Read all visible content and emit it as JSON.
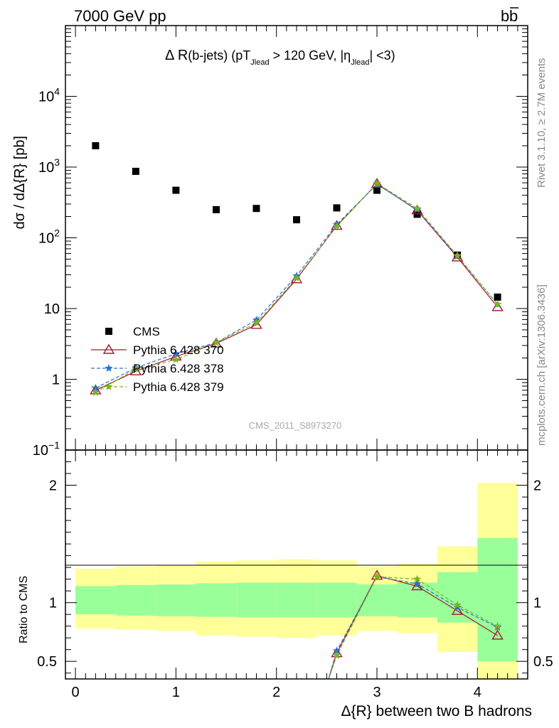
{
  "header": {
    "left": "7000 GeV pp",
    "right": "b",
    "right_bar": "b"
  },
  "side_labels": {
    "rivet": "Rivet 3.1.10, ≥ 2.7M events",
    "mcplots": "mcplots.cern.ch [arXiv:1306.3436]"
  },
  "watermark": "CMS_2011_S8973270",
  "chart_data": [
    {
      "type": "scatter",
      "panel": "main",
      "title": {
        "part1": "Δ R",
        "part2": "(b-jets) (pT",
        "sub1": "Jlead",
        "part3": " >  120 GeV, |η",
        "sub2": "Jlead",
        "part4": "| <3)"
      },
      "ylabel": "dσ / dΔ{R} [pb]",
      "yscale": "log",
      "xlim": [
        -0.1,
        4.5
      ],
      "ylim": [
        0.1,
        100000
      ],
      "y_ticks": [
        {
          "value": 0.1,
          "base": "10",
          "exp": "−1"
        },
        {
          "value": 1,
          "base": "1",
          "exp": ""
        },
        {
          "value": 10,
          "base": "10",
          "exp": ""
        },
        {
          "value": 100,
          "base": "10",
          "exp": "2"
        },
        {
          "value": 1000,
          "base": "10",
          "exp": "3"
        },
        {
          "value": 10000,
          "base": "10",
          "exp": "4"
        }
      ],
      "legend_position": "lower-left",
      "series": [
        {
          "name": "CMS",
          "marker": "square",
          "color": "#000000",
          "x": [
            0.2,
            0.6,
            1.0,
            1.4,
            1.8,
            2.2,
            2.6,
            3.0,
            3.4,
            3.8,
            4.2
          ],
          "y": [
            2000,
            870,
            470,
            250,
            260,
            180,
            265,
            470,
            215,
            57,
            14.5
          ]
        },
        {
          "name": "Pythia 6.428 370",
          "marker": "triangle-open",
          "color": "#a3172e",
          "dash": "solid",
          "x": [
            0.2,
            0.6,
            1.0,
            1.4,
            1.8,
            2.2,
            2.6,
            3.0,
            3.4,
            3.8,
            4.2
          ],
          "y": [
            0.7,
            1.3,
            2.1,
            3.2,
            5.9,
            26,
            148,
            580,
            245,
            53,
            10.5
          ]
        },
        {
          "name": "Pythia 6.428 378",
          "marker": "star",
          "color": "#2a70d0",
          "dash": "dashed",
          "x": [
            0.2,
            0.6,
            1.0,
            1.4,
            1.8,
            2.2,
            2.6,
            3.0,
            3.4,
            3.8,
            4.2
          ],
          "y": [
            0.75,
            1.45,
            2.3,
            3.3,
            6.9,
            29,
            155,
            570,
            250,
            55,
            11.5
          ]
        },
        {
          "name": "Pythia 6.428 379",
          "marker": "star",
          "color": "#7ab51d",
          "dash": "dashed",
          "x": [
            0.2,
            0.6,
            1.0,
            1.4,
            1.8,
            2.2,
            2.6,
            3.0,
            3.4,
            3.8,
            4.2
          ],
          "y": [
            0.65,
            1.4,
            1.9,
            3.3,
            6.3,
            27,
            145,
            590,
            260,
            56,
            11.5
          ]
        }
      ]
    },
    {
      "type": "line",
      "panel": "ratio",
      "ylabel": "Ratio to CMS",
      "xlabel": "Δ{R} between two B hadrons",
      "xlim": [
        -0.1,
        4.5
      ],
      "ylim": [
        0.35,
        2.3
      ],
      "x_ticks": [
        0,
        1,
        2,
        3,
        4
      ],
      "y_ticks": [
        0.5,
        1,
        2
      ],
      "bands": {
        "edges": [
          0.0,
          0.4,
          0.8,
          1.2,
          1.6,
          2.0,
          2.4,
          2.8,
          3.2,
          3.6,
          4.0,
          4.4
        ],
        "inner_color": "#99ff99",
        "outer_color": "#ffff99",
        "inner_low": [
          0.9,
          0.89,
          0.885,
          0.88,
          0.875,
          0.875,
          0.875,
          0.885,
          0.875,
          0.83,
          0.5
        ],
        "inner_high": [
          1.14,
          1.15,
          1.155,
          1.165,
          1.17,
          1.17,
          1.17,
          1.155,
          1.17,
          1.26,
          1.55
        ],
        "outer_low": [
          0.78,
          0.77,
          0.76,
          0.72,
          0.71,
          0.7,
          0.72,
          0.76,
          0.74,
          0.58,
          0.35
        ],
        "outer_high": [
          1.29,
          1.31,
          1.32,
          1.35,
          1.36,
          1.37,
          1.36,
          1.31,
          1.33,
          1.48,
          2.02
        ]
      },
      "series": [
        {
          "name": "Pythia 6.428 370",
          "color": "#a3172e",
          "x": [
            2.5,
            2.6,
            3.0,
            3.4,
            3.8,
            4.2
          ],
          "y": [
            0.3,
            0.57,
            1.23,
            1.14,
            0.93,
            0.72
          ]
        },
        {
          "name": "Pythia 6.428 378",
          "color": "#2a70d0",
          "x": [
            2.5,
            2.6,
            3.0,
            3.4,
            3.8,
            4.2
          ],
          "y": [
            0.3,
            0.59,
            1.22,
            1.16,
            0.96,
            0.79
          ]
        },
        {
          "name": "Pythia 6.428 379",
          "color": "#7ab51d",
          "x": [
            2.5,
            2.6,
            3.0,
            3.4,
            3.8,
            4.2
          ],
          "y": [
            0.3,
            0.55,
            1.22,
            1.2,
            0.98,
            0.8
          ]
        }
      ]
    }
  ]
}
